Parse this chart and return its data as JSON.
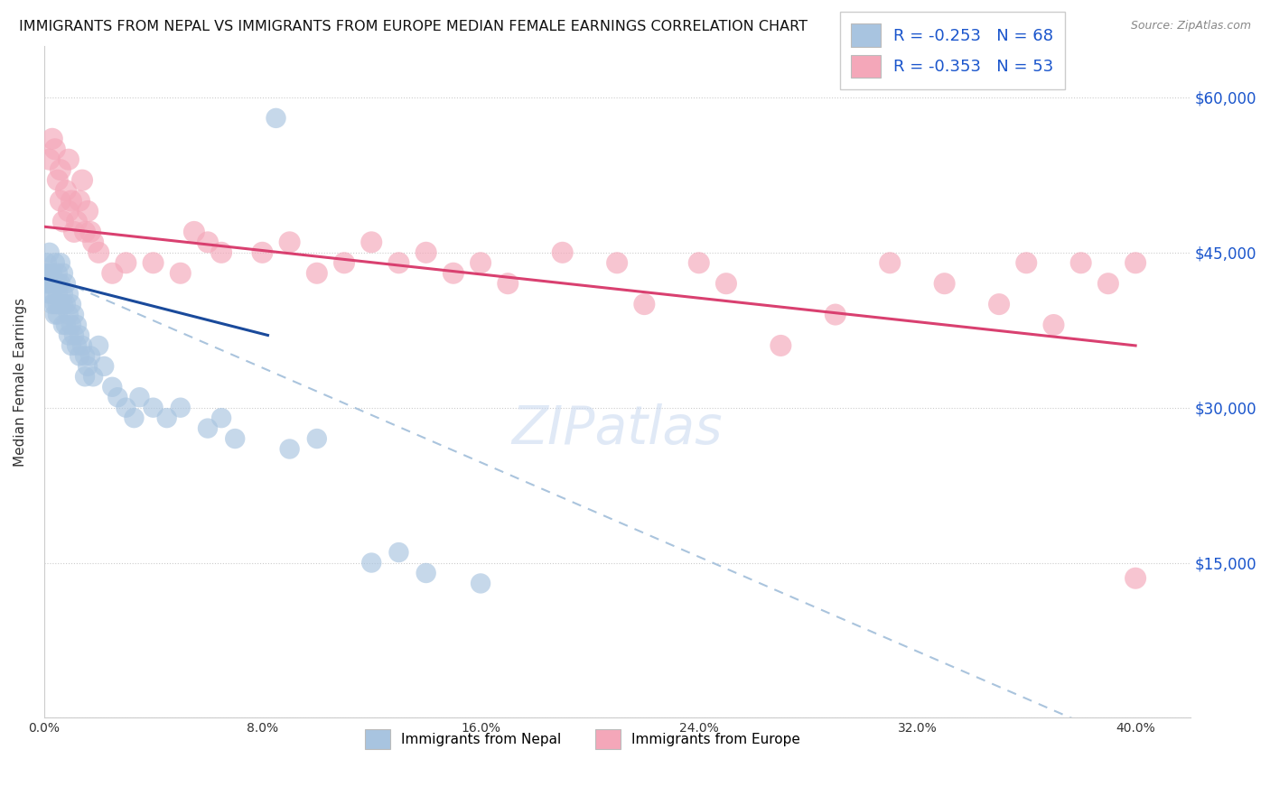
{
  "title": "IMMIGRANTS FROM NEPAL VS IMMIGRANTS FROM EUROPE MEDIAN FEMALE EARNINGS CORRELATION CHART",
  "source": "Source: ZipAtlas.com",
  "ylabel": "Median Female Earnings",
  "yticks": [
    0,
    15000,
    30000,
    45000,
    60000
  ],
  "ytick_labels": [
    "",
    "$15,000",
    "$30,000",
    "$45,000",
    "$60,000"
  ],
  "xtick_positions": [
    0.0,
    0.08,
    0.16,
    0.24,
    0.32,
    0.4
  ],
  "xtick_labels": [
    "0.0%",
    "8.0%",
    "16.0%",
    "24.0%",
    "32.0%",
    "40.0%"
  ],
  "xlim": [
    0.0,
    0.42
  ],
  "ylim": [
    0,
    65000
  ],
  "nepal_color": "#a8c4e0",
  "europe_color": "#f4a7b9",
  "nepal_R": -0.253,
  "nepal_N": 68,
  "europe_R": -0.353,
  "europe_N": 53,
  "nepal_line_color": "#1a4a9b",
  "europe_line_color": "#d94070",
  "dashed_line_color": "#aac4dd",
  "legend_label_nepal": "Immigrants from Nepal",
  "legend_label_europe": "Immigrants from Europe",
  "nepal_scatter_x": [
    0.001,
    0.001,
    0.001,
    0.002,
    0.002,
    0.002,
    0.002,
    0.003,
    0.003,
    0.003,
    0.003,
    0.004,
    0.004,
    0.004,
    0.004,
    0.005,
    0.005,
    0.005,
    0.005,
    0.005,
    0.006,
    0.006,
    0.006,
    0.007,
    0.007,
    0.007,
    0.007,
    0.008,
    0.008,
    0.008,
    0.009,
    0.009,
    0.009,
    0.01,
    0.01,
    0.01,
    0.011,
    0.011,
    0.012,
    0.012,
    0.013,
    0.013,
    0.014,
    0.015,
    0.015,
    0.016,
    0.017,
    0.018,
    0.02,
    0.022,
    0.025,
    0.027,
    0.03,
    0.033,
    0.035,
    0.04,
    0.045,
    0.05,
    0.06,
    0.065,
    0.07,
    0.085,
    0.09,
    0.1,
    0.12,
    0.13,
    0.14,
    0.16
  ],
  "nepal_scatter_y": [
    44000,
    42000,
    43000,
    43000,
    41000,
    45000,
    42000,
    42000,
    40000,
    43000,
    41000,
    44000,
    42000,
    39000,
    40000,
    43000,
    42000,
    40000,
    41000,
    39000,
    44000,
    42000,
    40000,
    43000,
    41000,
    40000,
    38000,
    42000,
    40000,
    38000,
    41000,
    39000,
    37000,
    40000,
    38000,
    36000,
    39000,
    37000,
    38000,
    36000,
    37000,
    35000,
    36000,
    35000,
    33000,
    34000,
    35000,
    33000,
    36000,
    34000,
    32000,
    31000,
    30000,
    29000,
    31000,
    30000,
    29000,
    30000,
    28000,
    29000,
    27000,
    58000,
    26000,
    27000,
    15000,
    16000,
    14000,
    13000
  ],
  "europe_scatter_x": [
    0.002,
    0.003,
    0.004,
    0.005,
    0.006,
    0.006,
    0.007,
    0.008,
    0.009,
    0.009,
    0.01,
    0.011,
    0.012,
    0.013,
    0.014,
    0.015,
    0.016,
    0.017,
    0.018,
    0.02,
    0.025,
    0.03,
    0.04,
    0.05,
    0.055,
    0.06,
    0.065,
    0.08,
    0.09,
    0.1,
    0.11,
    0.12,
    0.13,
    0.14,
    0.15,
    0.16,
    0.17,
    0.19,
    0.21,
    0.22,
    0.24,
    0.25,
    0.27,
    0.29,
    0.31,
    0.33,
    0.35,
    0.36,
    0.37,
    0.38,
    0.39,
    0.4,
    0.4
  ],
  "europe_scatter_y": [
    54000,
    56000,
    55000,
    52000,
    50000,
    53000,
    48000,
    51000,
    54000,
    49000,
    50000,
    47000,
    48000,
    50000,
    52000,
    47000,
    49000,
    47000,
    46000,
    45000,
    43000,
    44000,
    44000,
    43000,
    47000,
    46000,
    45000,
    45000,
    46000,
    43000,
    44000,
    46000,
    44000,
    45000,
    43000,
    44000,
    42000,
    45000,
    44000,
    40000,
    44000,
    42000,
    36000,
    39000,
    44000,
    42000,
    40000,
    44000,
    38000,
    44000,
    42000,
    44000,
    13500
  ],
  "nepal_line_x": [
    0.0,
    0.082
  ],
  "nepal_line_y": [
    42500,
    37000
  ],
  "europe_line_x": [
    0.0,
    0.4
  ],
  "europe_line_y": [
    47500,
    36000
  ],
  "dashed_line_x": [
    0.0,
    0.42
  ],
  "dashed_line_y": [
    43000,
    -5000
  ]
}
